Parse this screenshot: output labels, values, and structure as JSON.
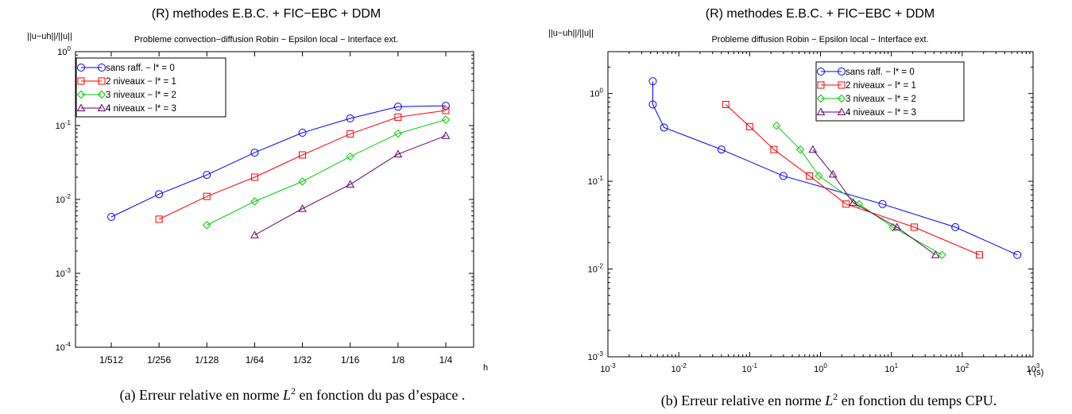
{
  "chart_data": [
    {
      "type": "line",
      "title": "(R) methodes E.B.C. + FIC−EBC + DDM",
      "subtitle": "Probleme convection−diffusion Robin − Epsilon local − Interface ext.",
      "ylabel": "||u−uh||/||u||",
      "xlabel": "h",
      "yscale": "log",
      "ylim": [
        0.0001,
        1
      ],
      "categories": [
        "1/512",
        "1/256",
        "1/128",
        "1/64",
        "1/32",
        "1/16",
        "1/8",
        "1/4"
      ],
      "y_ticks": [
        {
          "base": "10",
          "exp": "-4"
        },
        {
          "base": "10",
          "exp": "-3"
        },
        {
          "base": "10",
          "exp": "-2"
        },
        {
          "base": "10",
          "exp": "-1"
        },
        {
          "base": "10",
          "exp": "0"
        }
      ],
      "legend_position": "top-left",
      "series": [
        {
          "name": "sans raff. − l* = 0",
          "color": "#0000ff",
          "marker": "circle",
          "values": [
            0.0058,
            0.0118,
            0.0215,
            0.043,
            0.08,
            0.125,
            0.18,
            0.185
          ]
        },
        {
          "name": "2 niveaux − l* = 1",
          "color": "#ff0000",
          "marker": "square",
          "values": [
            null,
            0.0054,
            0.011,
            0.02,
            0.04,
            0.077,
            0.13,
            0.16
          ]
        },
        {
          "name": "3 niveaux − l* = 2",
          "color": "#00cc00",
          "marker": "diamond",
          "values": [
            null,
            null,
            0.0045,
            0.0094,
            0.0175,
            0.038,
            0.078,
            0.12
          ]
        },
        {
          "name": "4 niveaux − l* = 3",
          "color": "#660066",
          "marker": "triangle",
          "values": [
            null,
            null,
            null,
            0.0033,
            0.0075,
            0.016,
            0.041,
            0.073
          ]
        }
      ],
      "caption": {
        "prefix": "(a)  Erreur relative en norme ",
        "var": "L",
        "sup": "2",
        "suffix": " en fonction du pas d’espace ."
      }
    },
    {
      "type": "line",
      "title": "(R) methodes E.B.C. + FIC−EBC + DDM",
      "subtitle": "Probleme diffusion Robin − Epsilon local − Interface ext.",
      "ylabel": "||u−uh||/||u||",
      "xlabel": "t (s)",
      "xscale": "log",
      "yscale": "log",
      "xlim": [
        0.001,
        1000
      ],
      "ylim": [
        0.001,
        3
      ],
      "x_ticks": [
        {
          "base": "10",
          "exp": "-3"
        },
        {
          "base": "10",
          "exp": "-2"
        },
        {
          "base": "10",
          "exp": "-1"
        },
        {
          "base": "10",
          "exp": "0"
        },
        {
          "base": "10",
          "exp": "1"
        },
        {
          "base": "10",
          "exp": "2"
        },
        {
          "base": "10",
          "exp": "3"
        }
      ],
      "y_ticks": [
        {
          "base": "10",
          "exp": "-3"
        },
        {
          "base": "10",
          "exp": "-2"
        },
        {
          "base": "10",
          "exp": "-1"
        },
        {
          "base": "10",
          "exp": "0"
        }
      ],
      "legend_position": "top-right",
      "series": [
        {
          "name": "sans raff. − l* = 0",
          "color": "#0000ff",
          "marker": "circle",
          "x": [
            0.0043,
            0.0043,
            0.0062,
            0.04,
            0.3,
            7.5,
            80,
            600
          ],
          "y": [
            1.38,
            0.75,
            0.41,
            0.23,
            0.115,
            0.055,
            0.03,
            0.0145
          ]
        },
        {
          "name": "2 niveaux − l* = 1",
          "color": "#ff0000",
          "marker": "square",
          "x": [
            0.046,
            0.1,
            0.22,
            0.7,
            2.3,
            21,
            175
          ],
          "y": [
            0.75,
            0.42,
            0.23,
            0.115,
            0.055,
            0.03,
            0.0145
          ]
        },
        {
          "name": "3 niveaux − l* = 2",
          "color": "#00cc00",
          "marker": "diamond",
          "x": [
            0.24,
            0.52,
            0.95,
            3.5,
            10.5,
            52
          ],
          "y": [
            0.43,
            0.23,
            0.115,
            0.055,
            0.03,
            0.0145
          ]
        },
        {
          "name": "4 niveaux − l* = 3",
          "color": "#660066",
          "marker": "triangle",
          "x": [
            0.78,
            1.5,
            2.9,
            12,
            42
          ],
          "y": [
            0.23,
            0.12,
            0.057,
            0.03,
            0.0145
          ]
        }
      ],
      "caption": {
        "prefix": "(b)  Erreur relative en norme ",
        "var": "L",
        "sup": "2",
        "suffix": " en fonction du temps CPU."
      }
    }
  ]
}
